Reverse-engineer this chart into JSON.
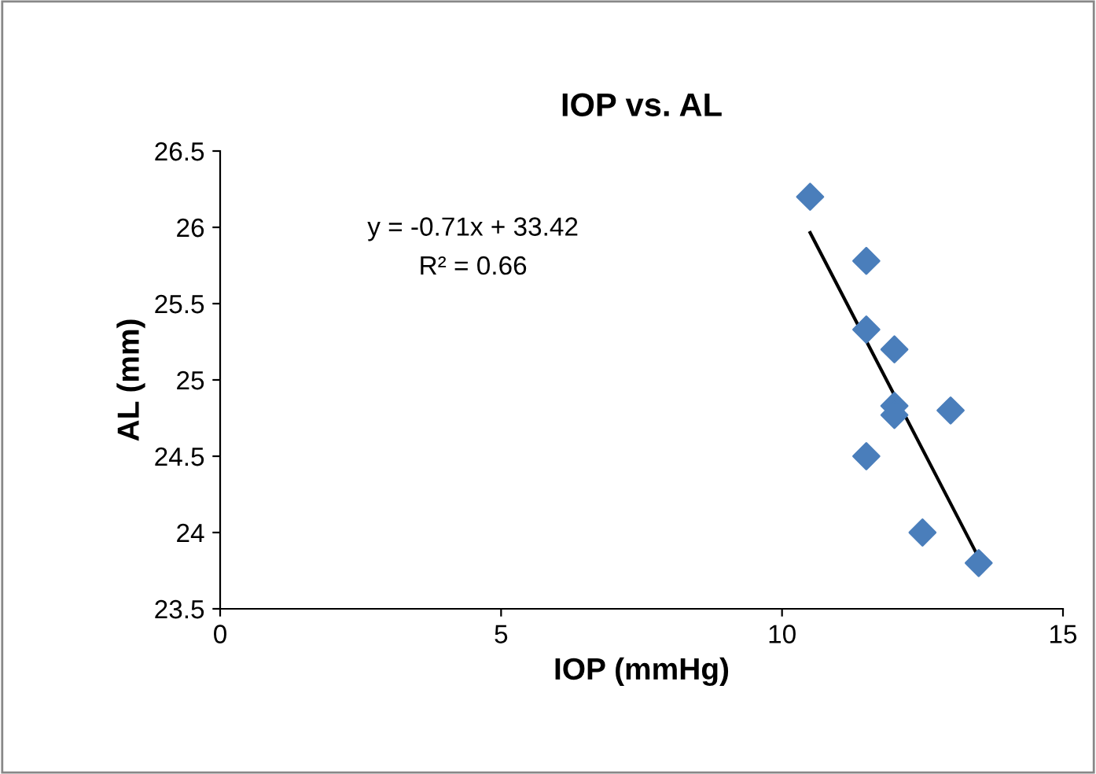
{
  "chart_data": {
    "type": "scatter",
    "title": "IOP vs. AL",
    "xlabel": "IOP (mmHg)",
    "ylabel": "AL (mm)",
    "x": [
      10.5,
      11.5,
      11.5,
      12,
      12,
      12,
      13,
      11.5,
      12.5,
      13.5
    ],
    "series": [
      {
        "color": "#4a7ebb",
        "marker": "diamond",
        "values": [
          26.2,
          25.78,
          25.33,
          25.2,
          24.83,
          24.77,
          24.8,
          24.5,
          24.0,
          23.8
        ]
      },
      {
        "type": "line",
        "color": "#000000",
        "x": [
          10.5,
          13.5
        ],
        "values": [
          25.965,
          23.835
        ],
        "marker": "none"
      }
    ],
    "annotations": [
      "y = -0.71x + 33.42",
      "R² = 0.66"
    ],
    "xlim": [
      0,
      15
    ],
    "xticks": [
      0,
      5,
      10,
      15
    ],
    "ylim": [
      23.5,
      26.5
    ],
    "yticks": [
      23.5,
      24,
      24.5,
      25,
      25.5,
      26,
      26.5
    ],
    "grid": false,
    "legend": false
  }
}
